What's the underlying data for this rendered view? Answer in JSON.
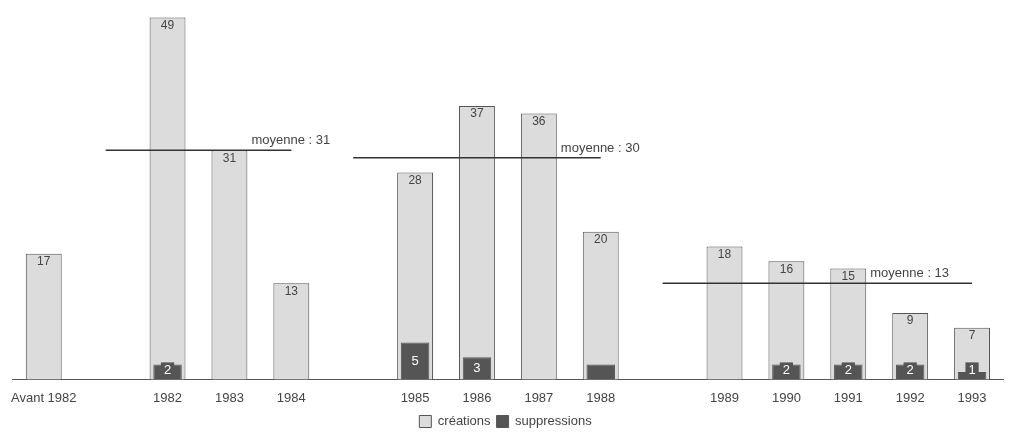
{
  "chart_data": {
    "type": "bar",
    "categories": [
      "Avant 1982",
      null,
      "1982",
      "1983",
      "1984",
      null,
      "1985",
      "1986",
      "1987",
      "1988",
      null,
      "1989",
      "1990",
      "1991",
      "1992",
      "1993"
    ],
    "series": [
      {
        "name": "créations",
        "color": "#dcdcdc",
        "values": [
          17,
          null,
          49,
          31,
          13,
          null,
          28,
          37,
          36,
          20,
          null,
          18,
          16,
          15,
          9,
          7
        ],
        "value_labels": [
          "17",
          null,
          "49",
          "31",
          "13",
          null,
          "28",
          "37",
          "36",
          "20",
          null,
          "18",
          "16",
          "15",
          "9",
          "7"
        ]
      },
      {
        "name": "suppressions",
        "color": "#555555",
        "values": [
          null,
          null,
          2,
          null,
          null,
          null,
          5,
          3,
          null,
          2,
          null,
          null,
          2,
          2,
          2,
          1
        ],
        "value_labels": [
          null,
          null,
          "2",
          null,
          null,
          null,
          "5",
          "3",
          null,
          null,
          null,
          null,
          "2",
          "2",
          "2",
          "1"
        ]
      },
      {
        "type": "line",
        "color": "#333333",
        "values": [
          null,
          31,
          31,
          31,
          31,
          null,
          null,
          null,
          null,
          null,
          null,
          null,
          null,
          null,
          null,
          null
        ]
      },
      {
        "type": "line",
        "color": "#333333",
        "values": [
          null,
          null,
          null,
          null,
          null,
          30,
          30,
          30,
          30,
          30,
          null,
          null,
          null,
          null,
          null,
          null
        ]
      },
      {
        "type": "line",
        "color": "#333333",
        "values": [
          null,
          null,
          null,
          null,
          null,
          null,
          null,
          null,
          null,
          null,
          13,
          13,
          13,
          13,
          13,
          13
        ]
      }
    ],
    "annotations": [
      {
        "text": "moyenne : 31",
        "x": "1983",
        "y": 31
      },
      {
        "text": "moyenne : 30",
        "x": "1987",
        "y": 30
      },
      {
        "text": "moyenne : 13",
        "x": "1991",
        "y": 13
      }
    ],
    "legend": "bottom",
    "tick_labels": "x"
  }
}
